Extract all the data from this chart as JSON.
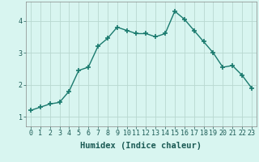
{
  "xlabel": "Humidex (Indice chaleur)",
  "x": [
    0,
    1,
    2,
    3,
    4,
    5,
    6,
    7,
    8,
    9,
    10,
    11,
    12,
    13,
    14,
    15,
    16,
    17,
    18,
    19,
    20,
    21,
    22,
    23
  ],
  "y": [
    1.2,
    1.3,
    1.4,
    1.45,
    1.8,
    2.45,
    2.55,
    3.2,
    3.45,
    3.8,
    3.7,
    3.6,
    3.6,
    3.5,
    3.6,
    4.3,
    4.05,
    3.7,
    3.35,
    3.0,
    2.55,
    2.6,
    2.3,
    1.9
  ],
  "line_color": "#1a7a6e",
  "marker": "+",
  "marker_size": 4,
  "line_width": 1.0,
  "background_color": "#d8f5f0",
  "grid_color": "#b8d8d0",
  "ylim": [
    0.7,
    4.6
  ],
  "xlim": [
    -0.5,
    23.5
  ],
  "yticks": [
    1,
    2,
    3,
    4
  ],
  "xticks": [
    0,
    1,
    2,
    3,
    4,
    5,
    6,
    7,
    8,
    9,
    10,
    11,
    12,
    13,
    14,
    15,
    16,
    17,
    18,
    19,
    20,
    21,
    22,
    23
  ],
  "tick_fontsize": 6,
  "xlabel_fontsize": 7.5,
  "text_color": "#1a5a54"
}
